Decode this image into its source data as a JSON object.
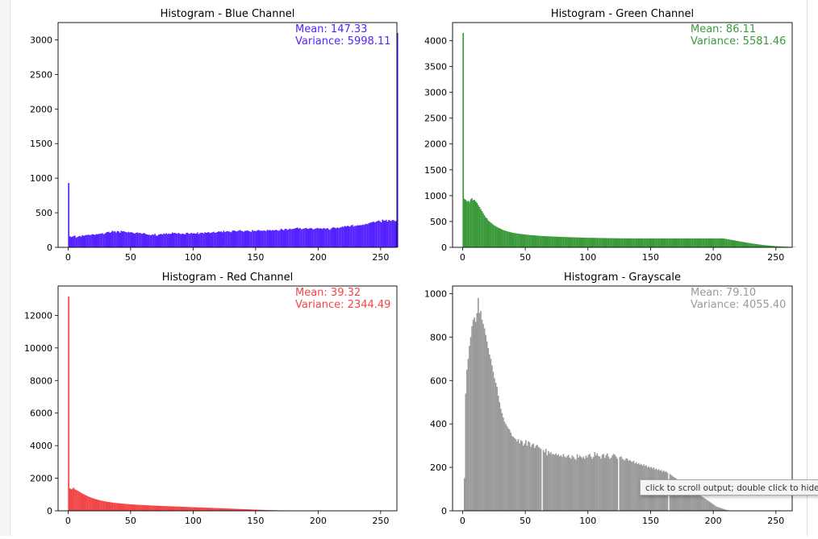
{
  "output": {
    "tooltip": "click to scroll output; double click to hide"
  },
  "chart_data": [
    {
      "type": "bar",
      "title": "Histogram - Blue Channel",
      "color": "#5522ff",
      "xlim": [
        -8,
        263
      ],
      "ylim": [
        0,
        3250
      ],
      "xticks": [
        0,
        50,
        100,
        150,
        200,
        250
      ],
      "yticks": [
        0,
        500,
        1000,
        1500,
        2000,
        2500,
        3000
      ],
      "annotation": [
        "Mean: 147.33",
        "Variance: 5998.11"
      ],
      "x": "pixel intensity bins 0-255",
      "values": [
        930,
        160,
        150,
        155,
        165,
        170,
        140,
        150,
        160,
        165,
        155,
        175,
        168,
        172,
        180,
        178,
        185,
        175,
        182,
        190,
        186,
        178,
        192,
        188,
        196,
        194,
        200,
        205,
        190,
        200,
        215,
        222,
        225,
        210,
        220,
        240,
        228,
        232,
        215,
        235,
        230,
        210,
        240,
        230,
        235,
        225,
        220,
        215,
        225,
        215,
        220,
        213,
        205,
        200,
        210,
        215,
        205,
        210,
        200,
        196,
        208,
        200,
        190,
        185,
        182,
        178,
        175,
        188,
        180,
        196,
        170,
        168,
        185,
        190,
        195,
        185,
        200,
        192,
        205,
        190,
        200,
        192,
        198,
        215,
        205,
        210,
        202,
        198,
        208,
        196,
        190,
        200,
        195,
        188,
        208,
        212,
        198,
        196,
        210,
        200,
        205,
        200,
        198,
        215,
        192,
        206,
        212,
        210,
        200,
        218,
        210,
        215,
        220,
        205,
        212,
        218,
        225,
        210,
        215,
        220,
        232,
        226,
        230,
        218,
        240,
        222,
        230,
        235,
        230,
        225,
        218,
        240,
        246,
        238,
        230,
        235,
        242,
        250,
        240,
        234,
        225,
        238,
        240,
        245,
        236,
        230,
        224,
        250,
        236,
        240,
        232,
        246,
        252,
        240,
        242,
        238,
        246,
        240,
        236,
        255,
        244,
        252,
        240,
        250,
        246,
        248,
        255,
        244,
        240,
        250,
        270,
        256,
        244,
        268,
        266,
        252,
        260,
        272,
        260,
        266,
        268,
        274,
        280,
        286,
        272,
        280,
        262,
        266,
        270,
        276,
        282,
        268,
        270,
        276,
        280,
        265,
        260,
        268,
        275,
        282,
        270,
        276,
        272,
        266,
        280,
        270,
        272,
        278,
        262,
        254,
        272,
        286,
        290,
        282,
        276,
        288,
        278,
        285,
        292,
        300,
        296,
        310,
        302,
        312,
        306,
        300,
        318,
        325,
        300,
        312,
        310,
        320,
        316,
        322,
        318,
        330,
        324,
        334,
        340,
        336,
        348,
        355,
        360,
        368,
        370,
        360,
        372,
        380,
        390,
        376,
        362,
        400,
        390,
        385,
        398,
        372,
        395,
        388,
        380,
        396,
        392,
        378,
        382,
        3100
      ]
    },
    {
      "type": "bar",
      "title": "Histogram - Green Channel",
      "color": "#3a9a3a",
      "xlim": [
        -8,
        263
      ],
      "ylim": [
        0,
        4350
      ],
      "xticks": [
        0,
        50,
        100,
        150,
        200,
        250
      ],
      "yticks": [
        0,
        500,
        1000,
        1500,
        2000,
        2500,
        3000,
        3500,
        4000
      ],
      "annotation": [
        "Mean: 86.11",
        "Variance: 5581.46"
      ],
      "x": "pixel intensity bins 0-255",
      "values": [
        4150,
        940,
        920,
        890,
        900,
        880,
        930,
        950,
        910,
        920,
        890,
        860,
        820,
        780,
        740,
        700,
        660,
        620,
        580,
        560,
        520,
        500,
        480,
        460,
        440,
        420,
        410,
        395,
        380,
        370,
        360,
        345,
        335,
        325,
        320,
        312,
        302,
        300,
        292,
        286,
        280,
        276,
        272,
        268,
        265,
        262,
        258,
        255,
        252,
        250,
        247,
        244,
        241,
        239,
        237,
        235,
        233,
        231,
        229,
        227,
        225,
        223,
        221,
        219,
        218,
        217,
        215,
        214,
        213,
        212,
        211,
        210,
        209,
        208,
        207,
        206,
        205,
        204,
        203,
        202,
        201,
        200,
        199,
        198,
        197,
        196,
        196,
        195,
        194,
        193,
        193,
        192,
        191,
        190,
        190,
        189,
        188,
        188,
        187,
        186,
        186,
        185,
        185,
        184,
        184,
        183,
        183,
        182,
        182,
        181,
        181,
        180,
        180,
        179,
        179,
        178,
        178,
        178,
        177,
        177,
        177,
        176,
        176,
        176,
        175,
        175,
        175,
        175,
        174,
        174,
        174,
        174,
        174,
        173,
        173,
        173,
        173,
        173,
        173,
        173,
        173,
        173,
        173,
        173,
        173,
        173,
        173,
        173,
        173,
        173,
        173,
        173,
        173,
        173,
        173,
        173,
        173,
        173,
        173,
        173,
        173,
        173,
        173,
        173,
        173,
        173,
        173,
        173,
        173,
        173,
        173,
        173,
        173,
        173,
        173,
        173,
        173,
        173,
        173,
        173,
        173,
        173,
        173,
        173,
        173,
        173,
        173,
        173,
        173,
        173,
        173,
        173,
        173,
        173,
        173,
        173,
        173,
        173,
        173,
        173,
        173,
        173,
        173,
        173,
        173,
        173,
        173,
        173,
        170,
        166,
        162,
        158,
        154,
        149,
        145,
        140,
        136,
        132,
        127,
        122,
        118,
        114,
        110,
        106,
        101,
        97,
        93,
        89,
        85,
        81,
        77,
        73,
        70,
        66,
        63,
        59,
        56,
        53,
        50,
        47,
        44,
        42,
        39,
        37,
        35,
        32,
        30,
        28,
        26,
        24,
        23,
        21,
        19,
        18,
        17,
        15,
        14,
        13,
        12,
        11,
        10,
        9,
        8,
        7,
        6,
        5,
        0
      ]
    },
    {
      "type": "bar",
      "title": "Histogram - Red Channel",
      "color": "#f14646",
      "xlim": [
        -8,
        263
      ],
      "ylim": [
        0,
        13800
      ],
      "xticks": [
        0,
        50,
        100,
        150,
        200,
        250
      ],
      "yticks": [
        0,
        2000,
        4000,
        6000,
        8000,
        10000,
        12000
      ],
      "annotation": [
        "Mean: 39.32",
        "Variance: 2344.49"
      ],
      "x": "pixel intensity bins 0-255",
      "values": [
        13150,
        1380,
        1320,
        1350,
        1420,
        1320,
        1280,
        1240,
        1200,
        1150,
        1100,
        1060,
        1020,
        980,
        940,
        905,
        870,
        840,
        810,
        780,
        755,
        730,
        705,
        685,
        665,
        645,
        628,
        612,
        596,
        582,
        568,
        555,
        542,
        530,
        519,
        508,
        498,
        488,
        479,
        470,
        462,
        454,
        446,
        439,
        432,
        425,
        419,
        413,
        407,
        401,
        396,
        391,
        386,
        381,
        376,
        372,
        367,
        363,
        359,
        355,
        351,
        347,
        343,
        339,
        335,
        331,
        328,
        324,
        321,
        317,
        314,
        310,
        307,
        304,
        300,
        297,
        294,
        291,
        288,
        285,
        282,
        279,
        276,
        273,
        270,
        267,
        264,
        261,
        258,
        255,
        252,
        249,
        246,
        243,
        240,
        237,
        234,
        231,
        228,
        225,
        222,
        219,
        216,
        213,
        210,
        207,
        204,
        201,
        198,
        195,
        192,
        189,
        186,
        183,
        180,
        177,
        174,
        171,
        168,
        165,
        162,
        159,
        156,
        153,
        150,
        147,
        144,
        141,
        138,
        135,
        132,
        129,
        126,
        123,
        120,
        117,
        114,
        111,
        108,
        105,
        102,
        99,
        96,
        93,
        90,
        87,
        84,
        81,
        78,
        75,
        72,
        69,
        66,
        63,
        60,
        57,
        54,
        51,
        48,
        45,
        42,
        40,
        38,
        36,
        34,
        32,
        30,
        28,
        26,
        24,
        22,
        20,
        18,
        16,
        14,
        12,
        10,
        8,
        6,
        5,
        4,
        3,
        2,
        1,
        0,
        0,
        0,
        0,
        0,
        0,
        0,
        0,
        0,
        0,
        0,
        0,
        0,
        0,
        0,
        0,
        0,
        0,
        0,
        0,
        0,
        0,
        0,
        0,
        0,
        0,
        0,
        0,
        0,
        0,
        0,
        0,
        0,
        0,
        0,
        0,
        0,
        0,
        0,
        0,
        0,
        0,
        0,
        0,
        0,
        0,
        0,
        0,
        0,
        0,
        0,
        0,
        0,
        0,
        0,
        0,
        0,
        0,
        0,
        0,
        0,
        0,
        0,
        0,
        0,
        0,
        0,
        0,
        0,
        0,
        0,
        0,
        0,
        0,
        0,
        0,
        0,
        0,
        0
      ]
    },
    {
      "type": "bar",
      "title": "Histogram - Grayscale",
      "color": "#9a9a9a",
      "xlim": [
        -8,
        263
      ],
      "ylim": [
        0,
        1035
      ],
      "xticks": [
        0,
        50,
        100,
        150,
        200,
        250
      ],
      "yticks": [
        0,
        200,
        400,
        600,
        800,
        1000
      ],
      "annotation": [
        "Mean: 79.10",
        "Variance: 4055.40"
      ],
      "x": "pixel intensity bins 0-255",
      "values": [
        0,
        150,
        540,
        650,
        700,
        760,
        800,
        850,
        880,
        890,
        870,
        910,
        980,
        910,
        920,
        880,
        860,
        840,
        810,
        780,
        750,
        720,
        700,
        670,
        640,
        610,
        590,
        570,
        530,
        500,
        470,
        450,
        430,
        410,
        400,
        390,
        380,
        375,
        360,
        345,
        340,
        335,
        330,
        320,
        330,
        310,
        325,
        320,
        300,
        310,
        325,
        300,
        320,
        315,
        295,
        305,
        310,
        290,
        300,
        305,
        295,
        290,
        285,
        0,
        280,
        270,
        285,
        255,
        275,
        265,
        270,
        260,
        262,
        258,
        264,
        255,
        260,
        250,
        256,
        248,
        262,
        250,
        244,
        252,
        258,
        245,
        240,
        255,
        248,
        240,
        235,
        260,
        245,
        255,
        248,
        242,
        250,
        240,
        255,
        246,
        258,
        262,
        250,
        240,
        248,
        270,
        255,
        265,
        252,
        250,
        240,
        258,
        262,
        244,
        256,
        265,
        250,
        240,
        244,
        255,
        262,
        258,
        250,
        240,
        0,
        248,
        250,
        240,
        236,
        232,
        242,
        240,
        230,
        234,
        228,
        225,
        230,
        218,
        224,
        215,
        220,
        212,
        216,
        208,
        214,
        206,
        210,
        200,
        205,
        198,
        202,
        195,
        200,
        190,
        195,
        188,
        192,
        185,
        188,
        180,
        185,
        178,
        182,
        175,
        0,
        170,
        165,
        160,
        156,
        152,
        148,
        144,
        140,
        136,
        132,
        128,
        124,
        120,
        116,
        112,
        108,
        104,
        100,
        96,
        92,
        88,
        84,
        80,
        76,
        72,
        68,
        64,
        60,
        56,
        52,
        48,
        44,
        40,
        36,
        32,
        28,
        24,
        20,
        18,
        16,
        14,
        12,
        10,
        8,
        6,
        4,
        3,
        2,
        1,
        0,
        0,
        0,
        0,
        0,
        0,
        0,
        0,
        0,
        0,
        0,
        0,
        0,
        0,
        0,
        0,
        0,
        0,
        0,
        0,
        0,
        0,
        0,
        0,
        0,
        0,
        0,
        0,
        0,
        0,
        0,
        0,
        0,
        0,
        0,
        0,
        0,
        0,
        0,
        0,
        0,
        0,
        0,
        0,
        0,
        0,
        0,
        0,
        0,
        0,
        0,
        0,
        0,
        0,
        0,
        0,
        0,
        0,
        0
      ]
    }
  ]
}
